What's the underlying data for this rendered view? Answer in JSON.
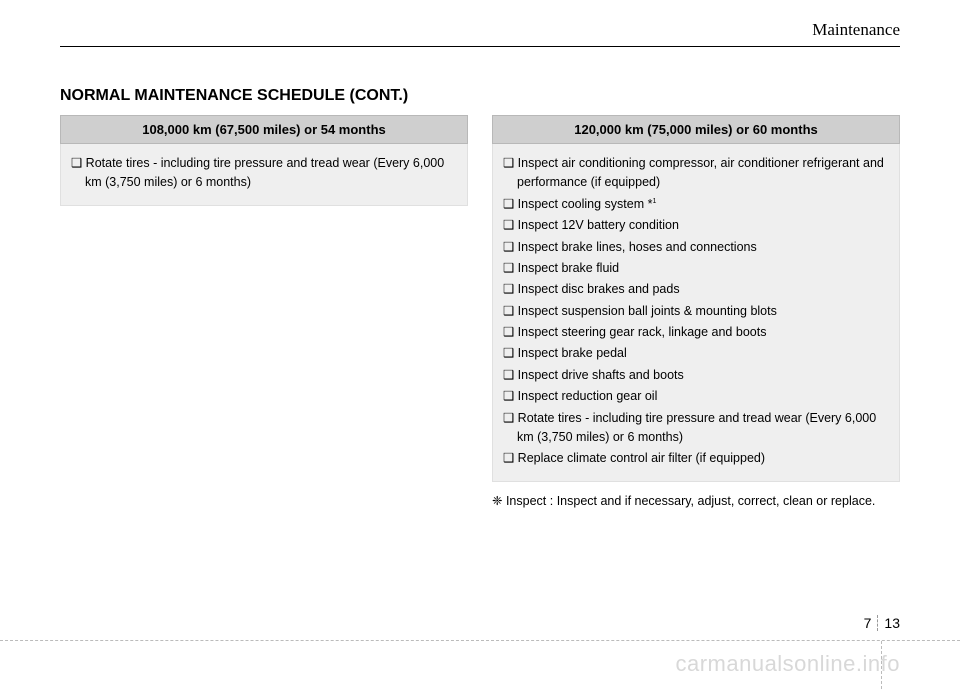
{
  "header": {
    "section": "Maintenance"
  },
  "title": "NORMAL MAINTENANCE SCHEDULE (CONT.)",
  "left": {
    "heading": "108,000 km (67,500 miles) or 54 months",
    "items": [
      "❑ Rotate tires - including tire pressure and tread wear (Every 6,000 km (3,750 miles) or 6 months)"
    ]
  },
  "right": {
    "heading": "120,000 km (75,000 miles) or 60 months",
    "items": [
      "❑ Inspect air conditioning compressor, air conditioner refrigerant and performance (if equipped)",
      "❑ Inspect cooling system *",
      "❑ Inspect 12V battery condition",
      "❑ Inspect brake lines, hoses and connections",
      "❑ Inspect brake fluid",
      "❑ Inspect disc brakes and pads",
      "❑ Inspect suspension ball joints & mounting blots",
      "❑ Inspect steering gear rack, linkage and boots",
      "❑ Inspect brake pedal",
      "❑ Inspect drive shafts and boots",
      "❑ Inspect reduction gear oil",
      "❑ Rotate tires - including tire pressure and tread wear (Every 6,000 km (3,750 miles) or 6 months)",
      "❑ Replace climate control air filter (if equipped)"
    ],
    "note_prefix": "❈ Inspect :",
    "note_body": "Inspect and if necessary, adjust, correct, clean or replace."
  },
  "footnote_sup": "1",
  "pagenum": {
    "chapter": "7",
    "page": "13"
  },
  "watermark": "carmanualsonline.info",
  "colors": {
    "box_header_bg": "#cfcfcf",
    "box_body_bg": "#efefef",
    "watermark": "#d8d8d8"
  }
}
